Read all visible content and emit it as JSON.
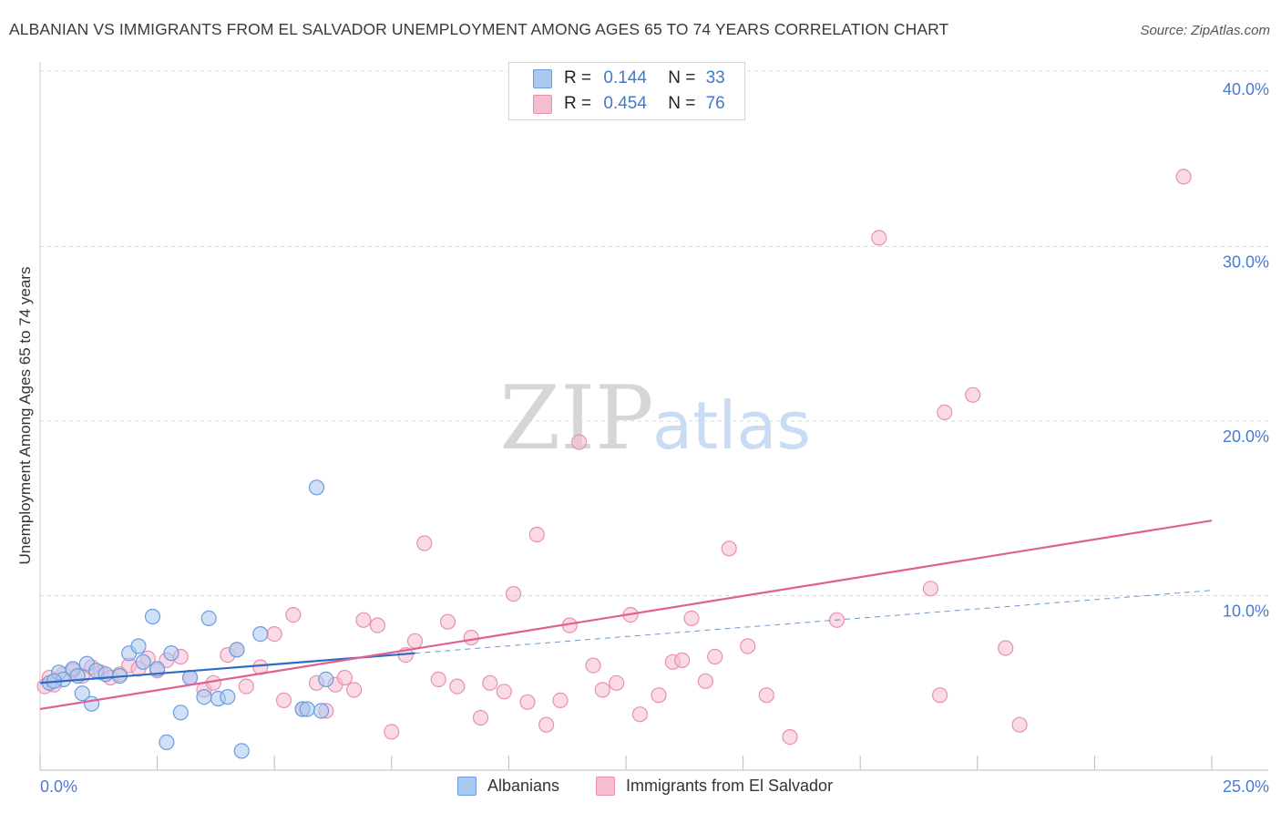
{
  "title": "ALBANIAN VS IMMIGRANTS FROM EL SALVADOR UNEMPLOYMENT AMONG AGES 65 TO 74 YEARS CORRELATION CHART",
  "source": "Source: ZipAtlas.com",
  "watermark": {
    "zip": "ZIP",
    "atlas": "atlas"
  },
  "legend_top": {
    "rows": [
      {
        "r_label": "R =",
        "r_value": "0.144",
        "n_label": "N =",
        "n_value": "33"
      },
      {
        "r_label": "R =",
        "r_value": "0.454",
        "n_label": "N =",
        "n_value": "76"
      }
    ]
  },
  "colors": {
    "blue_fill": "#a9c8f0",
    "blue_stroke": "#6b9be0",
    "blue_line": "#2e6bc4",
    "pink_fill": "#f6bccf",
    "pink_stroke": "#e890af",
    "pink_line": "#e0608f",
    "axis_label": "#4a7bd0",
    "grid": "#d8d8d8"
  },
  "chart_data": {
    "type": "scatter",
    "title": "ALBANIAN VS IMMIGRANTS FROM EL SALVADOR UNEMPLOYMENT AMONG AGES 65 TO 74 YEARS CORRELATION CHART",
    "xlabel": "",
    "ylabel": "Unemployment Among Ages 65 to 74 years",
    "xlim": [
      0,
      25
    ],
    "ylim": [
      0,
      40
    ],
    "x_tick_labels": [
      "0.0%",
      "25.0%"
    ],
    "y_tick_labels": [
      "10.0%",
      "20.0%",
      "30.0%",
      "40.0%"
    ],
    "y_ticks": [
      10,
      20,
      30,
      40
    ],
    "grid": "horizontal dashed",
    "legend_position": "bottom-center",
    "series": [
      {
        "name": "Albanians",
        "r": 0.144,
        "n": 33,
        "trend": {
          "x0": 0.0,
          "y0": 5.0,
          "x1": 8.0,
          "y1": 6.7,
          "dashed_to_x": 25.0,
          "dashed_to_y": 10.3
        },
        "points": [
          [
            0.2,
            5.0
          ],
          [
            0.4,
            5.6
          ],
          [
            0.5,
            5.2
          ],
          [
            0.7,
            5.8
          ],
          [
            0.9,
            4.4
          ],
          [
            1.0,
            6.1
          ],
          [
            1.1,
            3.8
          ],
          [
            1.2,
            5.7
          ],
          [
            1.4,
            5.5
          ],
          [
            1.7,
            5.4
          ],
          [
            1.9,
            6.7
          ],
          [
            2.1,
            7.1
          ],
          [
            2.2,
            6.2
          ],
          [
            2.4,
            8.8
          ],
          [
            2.5,
            5.8
          ],
          [
            2.7,
            1.6
          ],
          [
            2.8,
            6.7
          ],
          [
            3.0,
            3.3
          ],
          [
            3.2,
            5.3
          ],
          [
            3.5,
            4.2
          ],
          [
            3.6,
            8.7
          ],
          [
            3.8,
            4.1
          ],
          [
            4.0,
            4.2
          ],
          [
            4.2,
            6.9
          ],
          [
            4.3,
            1.1
          ],
          [
            4.7,
            7.8
          ],
          [
            5.6,
            3.5
          ],
          [
            5.7,
            3.5
          ],
          [
            5.9,
            16.2
          ],
          [
            6.0,
            3.4
          ],
          [
            6.1,
            5.2
          ],
          [
            0.3,
            5.1
          ],
          [
            0.8,
            5.4
          ]
        ]
      },
      {
        "name": "Immigrants from El Salvador",
        "r": 0.454,
        "n": 76,
        "trend": {
          "x0": 0.0,
          "y0": 3.5,
          "x1": 25.0,
          "y1": 14.3
        },
        "points": [
          [
            0.1,
            4.8
          ],
          [
            0.2,
            5.3
          ],
          [
            0.3,
            4.9
          ],
          [
            0.5,
            5.5
          ],
          [
            0.7,
            5.7
          ],
          [
            0.9,
            5.4
          ],
          [
            1.1,
            5.9
          ],
          [
            1.3,
            5.6
          ],
          [
            1.5,
            5.3
          ],
          [
            1.7,
            5.5
          ],
          [
            1.9,
            6.0
          ],
          [
            2.1,
            5.8
          ],
          [
            2.3,
            6.4
          ],
          [
            2.5,
            5.7
          ],
          [
            2.7,
            6.3
          ],
          [
            3.0,
            6.5
          ],
          [
            3.2,
            5.3
          ],
          [
            3.5,
            4.6
          ],
          [
            3.7,
            5.0
          ],
          [
            4.0,
            6.6
          ],
          [
            4.2,
            6.9
          ],
          [
            4.4,
            4.8
          ],
          [
            4.7,
            5.9
          ],
          [
            5.0,
            7.8
          ],
          [
            5.2,
            4.0
          ],
          [
            5.4,
            8.9
          ],
          [
            5.6,
            3.5
          ],
          [
            5.9,
            5.0
          ],
          [
            6.1,
            3.4
          ],
          [
            6.3,
            4.9
          ],
          [
            6.5,
            5.3
          ],
          [
            6.7,
            4.6
          ],
          [
            6.9,
            8.6
          ],
          [
            7.2,
            8.3
          ],
          [
            7.5,
            2.2
          ],
          [
            7.8,
            6.6
          ],
          [
            8.0,
            7.4
          ],
          [
            8.2,
            13.0
          ],
          [
            8.5,
            5.2
          ],
          [
            8.7,
            8.5
          ],
          [
            8.9,
            4.8
          ],
          [
            9.2,
            7.6
          ],
          [
            9.4,
            3.0
          ],
          [
            9.6,
            5.0
          ],
          [
            9.9,
            4.5
          ],
          [
            10.1,
            10.1
          ],
          [
            10.4,
            3.9
          ],
          [
            10.6,
            13.5
          ],
          [
            10.8,
            2.6
          ],
          [
            11.1,
            4.0
          ],
          [
            11.3,
            8.3
          ],
          [
            11.5,
            18.8
          ],
          [
            11.8,
            6.0
          ],
          [
            12.0,
            4.6
          ],
          [
            12.3,
            5.0
          ],
          [
            12.6,
            8.9
          ],
          [
            12.8,
            3.2
          ],
          [
            13.2,
            4.3
          ],
          [
            13.5,
            6.2
          ],
          [
            13.7,
            6.3
          ],
          [
            13.9,
            8.7
          ],
          [
            14.2,
            5.1
          ],
          [
            14.4,
            6.5
          ],
          [
            14.7,
            12.7
          ],
          [
            15.1,
            7.1
          ],
          [
            15.5,
            4.3
          ],
          [
            16.0,
            1.9
          ],
          [
            17.0,
            8.6
          ],
          [
            17.9,
            30.5
          ],
          [
            19.0,
            10.4
          ],
          [
            19.2,
            4.3
          ],
          [
            19.3,
            20.5
          ],
          [
            19.9,
            21.5
          ],
          [
            20.6,
            7.0
          ],
          [
            20.9,
            2.6
          ],
          [
            24.4,
            34.0
          ]
        ]
      }
    ]
  },
  "legend_bottom": [
    {
      "label": "Albanians",
      "series": 0
    },
    {
      "label": "Immigrants from El Salvador",
      "series": 1
    }
  ]
}
